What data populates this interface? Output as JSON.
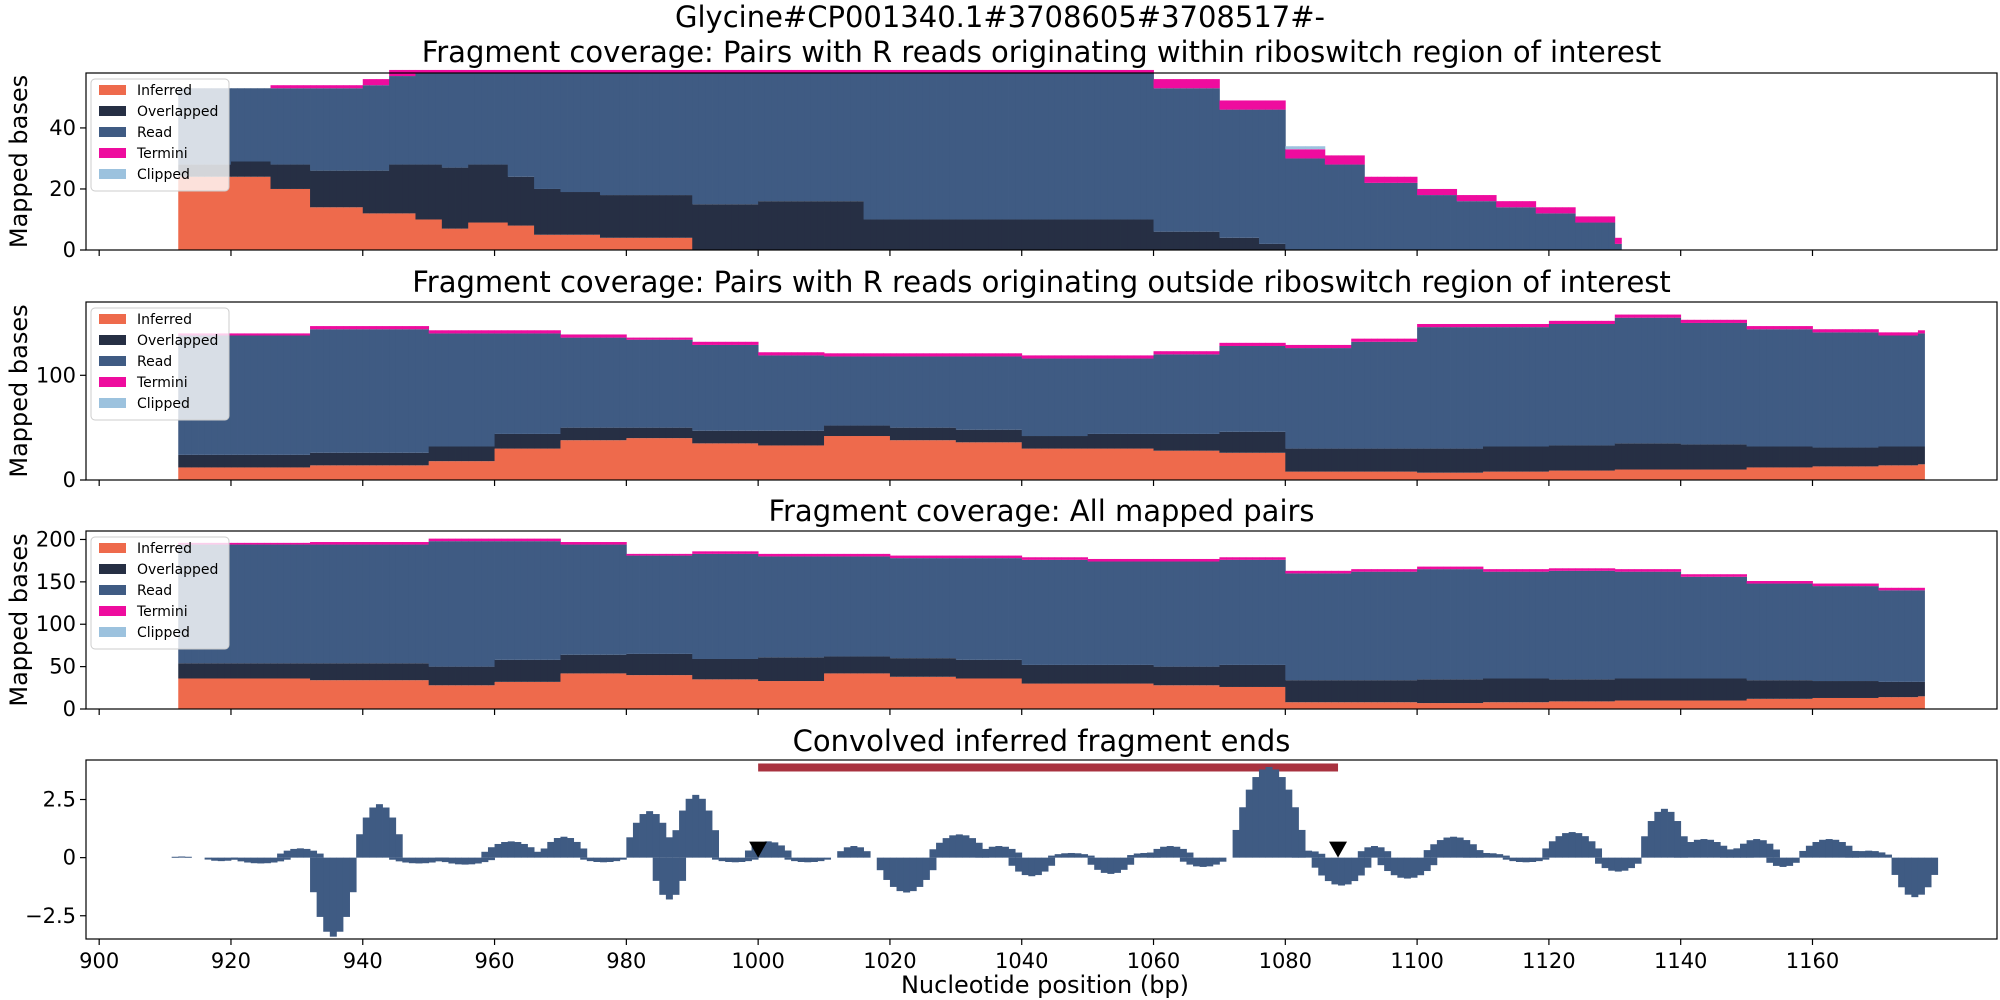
{
  "figure": {
    "suptitle": "Glycine#CP001340.1#3708605#3708517#-",
    "xlabel": "Nucleotide position (bp)"
  },
  "colors": {
    "inferred": "#ee6a4c",
    "overlapped": "#262f44",
    "read": "#3f5b83",
    "termini": "#ee0c9e",
    "clipped": "#9cc2de",
    "bar": "#3f5b83",
    "region": "#a8323f",
    "marker": "#000000"
  },
  "chart_data": [
    {
      "type": "area",
      "title": "Fragment coverage: Pairs with R reads originating within riboswitch region of interest",
      "ylabel": "Mapped bases",
      "xlim": [
        898,
        1188
      ],
      "ylim": [
        0,
        58
      ],
      "yticks": [
        0,
        20,
        40
      ],
      "legend": {
        "position": "top-left",
        "entries": [
          "Inferred",
          "Overlapped",
          "Read",
          "Termini",
          "Clipped"
        ]
      },
      "stack": [
        {
          "x": [
            912,
            918,
            920,
            922,
            926,
            932,
            940,
            944,
            948,
            952,
            956,
            962,
            966,
            970,
            976,
            990,
            1000,
            1016,
            1036,
            1060,
            1070,
            1076,
            1080,
            1086,
            1092,
            1100,
            1106,
            1112,
            1118,
            1124,
            1130
          ],
          "inferred": [
            24,
            24,
            24,
            24,
            20,
            14,
            12,
            12,
            10,
            7,
            9,
            8,
            5,
            5,
            4,
            0,
            0,
            0,
            0,
            0,
            0,
            0,
            0,
            0,
            0,
            0,
            0,
            0,
            0,
            0,
            0
          ],
          "overlapped": [
            4,
            4,
            5,
            5,
            8,
            12,
            14,
            16,
            18,
            20,
            19,
            16,
            15,
            14,
            14,
            15,
            16,
            10,
            10,
            6,
            4,
            2,
            0,
            0,
            0,
            0,
            0,
            0,
            0,
            0,
            0
          ],
          "read": [
            25,
            25,
            24,
            24,
            25,
            27,
            28,
            29,
            30,
            31,
            30,
            34,
            38,
            39,
            40,
            43,
            42,
            48,
            48,
            47,
            42,
            44,
            30,
            28,
            22,
            18,
            16,
            14,
            12,
            9,
            2
          ],
          "termini": [
            0,
            0,
            0,
            0,
            1,
            1,
            2,
            2,
            1,
            1,
            1,
            1,
            1,
            1,
            1,
            1,
            1,
            1,
            1,
            3,
            3,
            3,
            3,
            3,
            2,
            2,
            2,
            2,
            2,
            2,
            2
          ],
          "clipped": [
            0,
            0,
            0,
            0,
            0,
            0,
            0,
            0,
            0,
            0,
            0,
            0,
            0,
            0,
            0,
            0,
            0,
            0,
            0,
            0,
            0,
            0,
            1,
            0,
            0,
            0,
            0,
            0,
            0,
            0,
            0
          ]
        }
      ]
    },
    {
      "type": "area",
      "title": "Fragment coverage: Pairs with R reads originating outside riboswitch region of interest",
      "ylabel": "Mapped bases",
      "xlim": [
        898,
        1188
      ],
      "ylim": [
        0,
        170
      ],
      "yticks": [
        0,
        100
      ],
      "legend": {
        "position": "top-left",
        "entries": [
          "Inferred",
          "Overlapped",
          "Read",
          "Termini",
          "Clipped"
        ]
      },
      "stack": [
        {
          "x": [
            912,
            932,
            950,
            960,
            970,
            980,
            990,
            1000,
            1010,
            1020,
            1030,
            1040,
            1050,
            1060,
            1070,
            1080,
            1090,
            1100,
            1110,
            1120,
            1130,
            1140,
            1150,
            1160,
            1170,
            1176
          ],
          "inferred": [
            12,
            14,
            18,
            30,
            38,
            40,
            35,
            33,
            42,
            38,
            36,
            30,
            30,
            28,
            26,
            8,
            8,
            7,
            8,
            9,
            10,
            10,
            12,
            13,
            14,
            15
          ],
          "overlapped": [
            12,
            12,
            14,
            14,
            12,
            10,
            12,
            14,
            10,
            12,
            12,
            12,
            14,
            16,
            20,
            22,
            22,
            23,
            24,
            24,
            25,
            24,
            20,
            18,
            18,
            17
          ],
          "read": [
            114,
            118,
            108,
            96,
            86,
            84,
            82,
            72,
            66,
            68,
            70,
            74,
            72,
            76,
            82,
            96,
            102,
            116,
            114,
            116,
            120,
            116,
            112,
            110,
            106,
            108
          ],
          "termini": [
            2,
            3,
            3,
            3,
            3,
            2,
            3,
            3,
            3,
            3,
            3,
            3,
            3,
            3,
            3,
            3,
            3,
            3,
            3,
            3,
            3,
            3,
            3,
            3,
            3,
            3
          ],
          "clipped": [
            0,
            0,
            0,
            0,
            0,
            0,
            0,
            0,
            0,
            0,
            0,
            0,
            0,
            0,
            0,
            0,
            0,
            0,
            0,
            0,
            0,
            0,
            0,
            0,
            0,
            0
          ]
        }
      ]
    },
    {
      "type": "area",
      "title": "Fragment coverage: All mapped pairs",
      "ylabel": "Mapped bases",
      "xlim": [
        898,
        1188
      ],
      "ylim": [
        0,
        210
      ],
      "yticks": [
        0,
        50,
        100,
        150,
        200
      ],
      "legend": {
        "position": "top-left",
        "entries": [
          "Inferred",
          "Overlapped",
          "Read",
          "Termini",
          "Clipped"
        ]
      },
      "stack": [
        {
          "x": [
            912,
            932,
            950,
            960,
            970,
            980,
            990,
            1000,
            1010,
            1020,
            1030,
            1040,
            1050,
            1060,
            1070,
            1080,
            1090,
            1100,
            1110,
            1120,
            1130,
            1140,
            1150,
            1160,
            1170,
            1176
          ],
          "inferred": [
            36,
            34,
            28,
            32,
            42,
            40,
            35,
            33,
            42,
            38,
            36,
            30,
            30,
            28,
            26,
            8,
            8,
            7,
            8,
            9,
            10,
            10,
            12,
            13,
            14,
            15
          ],
          "overlapped": [
            18,
            20,
            22,
            26,
            22,
            25,
            24,
            28,
            20,
            22,
            22,
            22,
            22,
            22,
            26,
            26,
            26,
            28,
            28,
            26,
            26,
            26,
            22,
            20,
            18,
            17
          ],
          "read": [
            140,
            140,
            148,
            140,
            130,
            116,
            124,
            119,
            118,
            118,
            120,
            124,
            122,
            124,
            124,
            126,
            128,
            130,
            126,
            128,
            126,
            120,
            114,
            112,
            108,
            108
          ],
          "termini": [
            2,
            3,
            3,
            3,
            3,
            2,
            3,
            3,
            3,
            3,
            3,
            3,
            3,
            3,
            3,
            3,
            3,
            3,
            3,
            3,
            3,
            3,
            3,
            3,
            3,
            3
          ],
          "clipped": [
            0,
            0,
            0,
            0,
            0,
            0,
            0,
            0,
            0,
            0,
            0,
            0,
            0,
            0,
            0,
            0,
            0,
            0,
            0,
            0,
            0,
            0,
            0,
            0,
            0,
            0
          ]
        }
      ]
    },
    {
      "type": "bar",
      "title": "Convolved inferred fragment ends",
      "ylabel": "",
      "xlim": [
        898,
        1188
      ],
      "ylim": [
        -3.5,
        4.2
      ],
      "yticks": [
        -2.5,
        0.0,
        2.5
      ],
      "xticks": [
        900,
        920,
        940,
        960,
        980,
        1000,
        1020,
        1040,
        1060,
        1080,
        1100,
        1120,
        1140,
        1160
      ],
      "region": [
        1000,
        1088
      ],
      "markers": [
        1000,
        1088
      ],
      "peaks": [
        {
          "x": 912,
          "h": 0.05,
          "w": 1
        },
        {
          "x": 918,
          "h": -0.15,
          "w": 2
        },
        {
          "x": 924,
          "h": -0.25,
          "w": 4
        },
        {
          "x": 930,
          "h": 0.4,
          "w": 3
        },
        {
          "x": 935,
          "h": -3.4,
          "w": 3
        },
        {
          "x": 942,
          "h": 2.3,
          "w": 3
        },
        {
          "x": 948,
          "h": -0.25,
          "w": 4
        },
        {
          "x": 955,
          "h": -0.3,
          "w": 4
        },
        {
          "x": 962,
          "h": 0.7,
          "w": 4
        },
        {
          "x": 970,
          "h": 0.9,
          "w": 3
        },
        {
          "x": 976,
          "h": -0.2,
          "w": 3
        },
        {
          "x": 983,
          "h": 2.0,
          "w": 3
        },
        {
          "x": 986,
          "h": -1.8,
          "w": 2
        },
        {
          "x": 990,
          "h": 2.7,
          "w": 3
        },
        {
          "x": 996,
          "h": -0.2,
          "w": 3
        },
        {
          "x": 1001,
          "h": 0.7,
          "w": 3
        },
        {
          "x": 1007,
          "h": -0.2,
          "w": 3
        },
        {
          "x": 1014,
          "h": 0.5,
          "w": 2
        },
        {
          "x": 1022,
          "h": -1.5,
          "w": 4
        },
        {
          "x": 1030,
          "h": 1.0,
          "w": 4
        },
        {
          "x": 1036,
          "h": 0.5,
          "w": 3
        },
        {
          "x": 1041,
          "h": -0.8,
          "w": 3
        },
        {
          "x": 1047,
          "h": 0.2,
          "w": 3
        },
        {
          "x": 1053,
          "h": -0.7,
          "w": 3
        },
        {
          "x": 1058,
          "h": 0.2,
          "w": 2
        },
        {
          "x": 1062,
          "h": 0.5,
          "w": 3
        },
        {
          "x": 1067,
          "h": -0.4,
          "w": 3
        },
        {
          "x": 1077,
          "h": 3.9,
          "w": 5
        },
        {
          "x": 1083,
          "h": 0.3,
          "w": 2
        },
        {
          "x": 1088,
          "h": -1.2,
          "w": 4
        },
        {
          "x": 1093,
          "h": 0.5,
          "w": 2
        },
        {
          "x": 1098,
          "h": -0.9,
          "w": 4
        },
        {
          "x": 1105,
          "h": 0.9,
          "w": 4
        },
        {
          "x": 1110,
          "h": 0.2,
          "w": 3
        },
        {
          "x": 1116,
          "h": -0.2,
          "w": 3
        },
        {
          "x": 1123,
          "h": 1.1,
          "w": 4
        },
        {
          "x": 1130,
          "h": -0.6,
          "w": 3
        },
        {
          "x": 1137,
          "h": 2.1,
          "w": 3
        },
        {
          "x": 1143,
          "h": 0.8,
          "w": 4
        },
        {
          "x": 1148,
          "h": 0.4,
          "w": 2
        },
        {
          "x": 1151,
          "h": 0.8,
          "w": 3
        },
        {
          "x": 1155,
          "h": -0.4,
          "w": 2
        },
        {
          "x": 1162,
          "h": 0.8,
          "w": 4
        },
        {
          "x": 1168,
          "h": 0.3,
          "w": 3
        },
        {
          "x": 1175,
          "h": -1.7,
          "w": 3
        }
      ]
    }
  ]
}
